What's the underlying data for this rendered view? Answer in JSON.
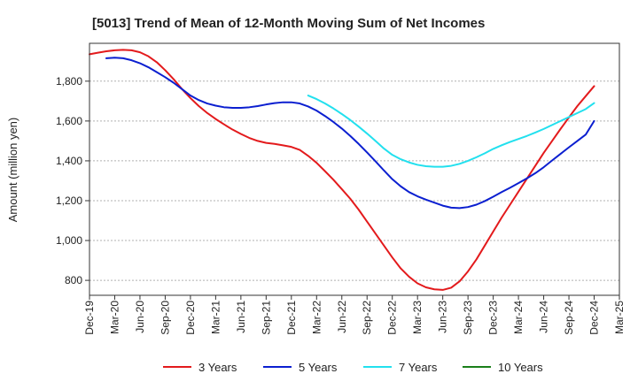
{
  "chart_data": {
    "type": "line",
    "title": "[5013]  Trend of Mean of 12-Month Moving Sum of Net Incomes",
    "xlabel": "",
    "ylabel": "Amount (million yen)",
    "ylim": [
      725,
      1990
    ],
    "yticks": [
      800,
      1000,
      1200,
      1400,
      1600,
      1800
    ],
    "ytick_labels": [
      "800",
      "1,000",
      "1,200",
      "1,400",
      "1,600",
      "1,800"
    ],
    "xticks": [
      "Dec-19",
      "Mar-20",
      "Jun-20",
      "Sep-20",
      "Dec-20",
      "Mar-21",
      "Jun-21",
      "Sep-21",
      "Dec-21",
      "Mar-22",
      "Jun-22",
      "Sep-22",
      "Dec-22",
      "Mar-23",
      "Jun-23",
      "Sep-23",
      "Dec-23",
      "Mar-24",
      "Jun-24",
      "Sep-24",
      "Dec-24",
      "Mar-25"
    ],
    "grid": "horizontal dashed",
    "legend_position": "bottom",
    "series": [
      {
        "name": "3 Years",
        "color": "#e31a1c",
        "points": [
          [
            "Dec-19",
            1935
          ],
          [
            "Jan-20",
            1943
          ],
          [
            "Feb-20",
            1950
          ],
          [
            "Mar-20",
            1955
          ],
          [
            "Apr-20",
            1957
          ],
          [
            "May-20",
            1955
          ],
          [
            "Jun-20",
            1945
          ],
          [
            "Jul-20",
            1925
          ],
          [
            "Aug-20",
            1895
          ],
          [
            "Sep-20",
            1855
          ],
          [
            "Oct-20",
            1810
          ],
          [
            "Nov-20",
            1760
          ],
          [
            "Dec-20",
            1715
          ],
          [
            "Jan-21",
            1675
          ],
          [
            "Feb-21",
            1640
          ],
          [
            "Mar-21",
            1610
          ],
          [
            "Apr-21",
            1583
          ],
          [
            "May-21",
            1557
          ],
          [
            "Jun-21",
            1535
          ],
          [
            "Jul-21",
            1515
          ],
          [
            "Aug-21",
            1500
          ],
          [
            "Sep-21",
            1490
          ],
          [
            "Oct-21",
            1485
          ],
          [
            "Nov-21",
            1478
          ],
          [
            "Dec-21",
            1470
          ],
          [
            "Jan-22",
            1455
          ],
          [
            "Feb-22",
            1425
          ],
          [
            "Mar-22",
            1390
          ],
          [
            "Apr-22",
            1348
          ],
          [
            "May-22",
            1305
          ],
          [
            "Jun-22",
            1258
          ],
          [
            "Jul-22",
            1210
          ],
          [
            "Aug-22",
            1155
          ],
          [
            "Sep-22",
            1095
          ],
          [
            "Oct-22",
            1035
          ],
          [
            "Nov-22",
            975
          ],
          [
            "Dec-22",
            915
          ],
          [
            "Jan-23",
            860
          ],
          [
            "Feb-23",
            818
          ],
          [
            "Mar-23",
            785
          ],
          [
            "Apr-23",
            765
          ],
          [
            "May-23",
            755
          ],
          [
            "Jun-23",
            752
          ],
          [
            "Jul-23",
            763
          ],
          [
            "Aug-23",
            795
          ],
          [
            "Sep-23",
            845
          ],
          [
            "Oct-23",
            905
          ],
          [
            "Nov-23",
            975
          ],
          [
            "Dec-23",
            1045
          ],
          [
            "Jan-24",
            1115
          ],
          [
            "Feb-24",
            1180
          ],
          [
            "Mar-24",
            1245
          ],
          [
            "Apr-24",
            1310
          ],
          [
            "May-24",
            1375
          ],
          [
            "Jun-24",
            1440
          ],
          [
            "Jul-24",
            1500
          ],
          [
            "Aug-24",
            1560
          ],
          [
            "Sep-24",
            1618
          ],
          [
            "Oct-24",
            1675
          ],
          [
            "Nov-24",
            1725
          ],
          [
            "Dec-24",
            1775
          ]
        ]
      },
      {
        "name": "5 Years",
        "color": "#0b1fd0",
        "points": [
          [
            "Feb-20",
            1915
          ],
          [
            "Mar-20",
            1918
          ],
          [
            "Apr-20",
            1915
          ],
          [
            "May-20",
            1905
          ],
          [
            "Jun-20",
            1890
          ],
          [
            "Jul-20",
            1870
          ],
          [
            "Aug-20",
            1845
          ],
          [
            "Sep-20",
            1820
          ],
          [
            "Oct-20",
            1792
          ],
          [
            "Nov-20",
            1760
          ],
          [
            "Dec-20",
            1728
          ],
          [
            "Jan-21",
            1705
          ],
          [
            "Feb-21",
            1688
          ],
          [
            "Mar-21",
            1677
          ],
          [
            "Apr-21",
            1669
          ],
          [
            "May-21",
            1666
          ],
          [
            "Jun-21",
            1666
          ],
          [
            "Jul-21",
            1669
          ],
          [
            "Aug-21",
            1675
          ],
          [
            "Sep-21",
            1683
          ],
          [
            "Oct-21",
            1690
          ],
          [
            "Nov-21",
            1694
          ],
          [
            "Dec-21",
            1694
          ],
          [
            "Jan-22",
            1688
          ],
          [
            "Feb-22",
            1673
          ],
          [
            "Mar-22",
            1652
          ],
          [
            "Apr-22",
            1625
          ],
          [
            "May-22",
            1595
          ],
          [
            "Jun-22",
            1562
          ],
          [
            "Jul-22",
            1525
          ],
          [
            "Aug-22",
            1485
          ],
          [
            "Sep-22",
            1442
          ],
          [
            "Oct-22",
            1398
          ],
          [
            "Nov-22",
            1352
          ],
          [
            "Dec-22",
            1308
          ],
          [
            "Jan-23",
            1272
          ],
          [
            "Feb-23",
            1243
          ],
          [
            "Mar-23",
            1222
          ],
          [
            "Apr-23",
            1205
          ],
          [
            "May-23",
            1190
          ],
          [
            "Jun-23",
            1175
          ],
          [
            "Jul-23",
            1165
          ],
          [
            "Aug-23",
            1163
          ],
          [
            "Sep-23",
            1168
          ],
          [
            "Oct-23",
            1180
          ],
          [
            "Nov-23",
            1198
          ],
          [
            "Dec-23",
            1220
          ],
          [
            "Jan-24",
            1243
          ],
          [
            "Feb-24",
            1265
          ],
          [
            "Mar-24",
            1288
          ],
          [
            "Apr-24",
            1312
          ],
          [
            "May-24",
            1338
          ],
          [
            "Jun-24",
            1368
          ],
          [
            "Jul-24",
            1402
          ],
          [
            "Aug-24",
            1435
          ],
          [
            "Sep-24",
            1468
          ],
          [
            "Oct-24",
            1500
          ],
          [
            "Nov-24",
            1532
          ],
          [
            "Dec-24",
            1600
          ]
        ]
      },
      {
        "name": "7 Years",
        "color": "#22e0ee",
        "points": [
          [
            "Feb-22",
            1728
          ],
          [
            "Mar-22",
            1710
          ],
          [
            "Apr-22",
            1688
          ],
          [
            "May-22",
            1663
          ],
          [
            "Jun-22",
            1635
          ],
          [
            "Jul-22",
            1605
          ],
          [
            "Aug-22",
            1572
          ],
          [
            "Sep-22",
            1537
          ],
          [
            "Oct-22",
            1500
          ],
          [
            "Nov-22",
            1462
          ],
          [
            "Dec-22",
            1430
          ],
          [
            "Jan-23",
            1408
          ],
          [
            "Feb-23",
            1392
          ],
          [
            "Mar-23",
            1380
          ],
          [
            "Apr-23",
            1373
          ],
          [
            "May-23",
            1370
          ],
          [
            "Jun-23",
            1370
          ],
          [
            "Jul-23",
            1375
          ],
          [
            "Aug-23",
            1385
          ],
          [
            "Sep-23",
            1400
          ],
          [
            "Oct-23",
            1418
          ],
          [
            "Nov-23",
            1438
          ],
          [
            "Dec-23",
            1460
          ],
          [
            "Jan-24",
            1478
          ],
          [
            "Feb-24",
            1495
          ],
          [
            "Mar-24",
            1510
          ],
          [
            "Apr-24",
            1525
          ],
          [
            "May-24",
            1542
          ],
          [
            "Jun-24",
            1560
          ],
          [
            "Jul-24",
            1580
          ],
          [
            "Aug-24",
            1600
          ],
          [
            "Sep-24",
            1620
          ],
          [
            "Oct-24",
            1640
          ],
          [
            "Nov-24",
            1660
          ],
          [
            "Dec-24",
            1690
          ]
        ]
      },
      {
        "name": "10 Years",
        "color": "#1a7f1a",
        "points": []
      }
    ]
  }
}
